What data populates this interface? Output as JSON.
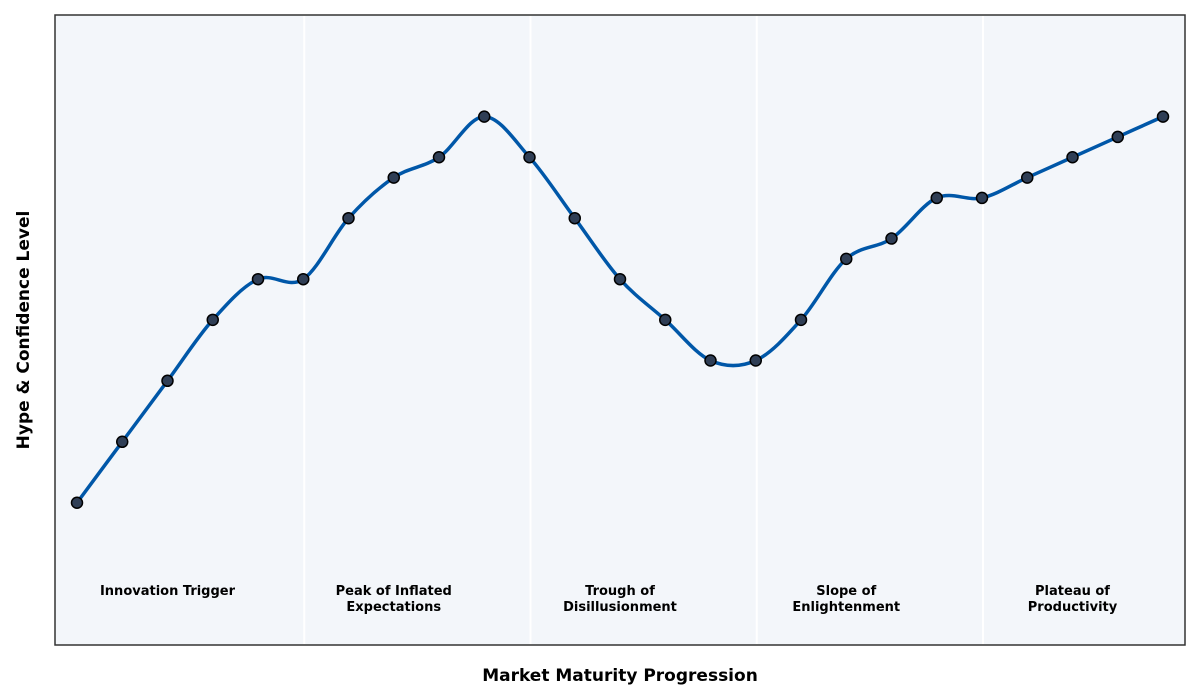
{
  "chart_data": {
    "type": "line",
    "title": "",
    "xlabel": "Market Maturity Progression",
    "ylabel": "Hype & Confidence Level",
    "xlim": [
      0,
      24.3
    ],
    "ylim": [
      0,
      31
    ],
    "grid": false,
    "x": [
      0,
      1,
      2,
      3,
      4,
      5,
      6,
      7,
      8,
      9,
      10,
      11,
      12,
      13,
      14,
      15,
      16,
      17,
      18,
      19,
      20,
      21,
      22,
      23,
      24
    ],
    "series": [
      {
        "values": [
          7,
          10,
          13,
          16,
          18,
          18,
          21,
          23,
          24,
          26,
          24,
          21,
          18,
          16,
          14,
          14,
          16,
          19,
          20,
          22,
          22,
          23,
          24,
          25,
          26
        ]
      }
    ],
    "phase_boundaries": [
      5,
      10,
      15,
      20
    ],
    "phases": [
      [
        "Innovation Trigger"
      ],
      [
        "Peak of Inflated",
        "Expectations"
      ],
      [
        "Trough of",
        "Disillusionment"
      ],
      [
        "Slope of",
        "Enlightenment"
      ],
      [
        "Plateau of",
        "Productivity"
      ]
    ],
    "colors": {
      "line": "#0057a8",
      "marker_fill": "#2f3e55",
      "marker_edge": "#000000",
      "plot_background": "#f3f6fa",
      "divider": "#ffffff",
      "frame": "#333333"
    }
  }
}
